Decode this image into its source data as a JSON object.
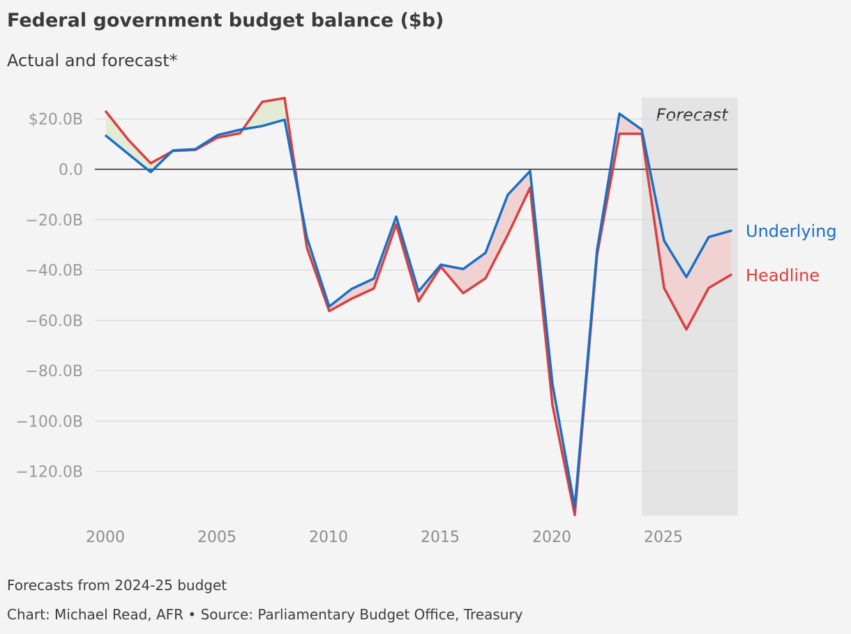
{
  "header": {
    "title": "Federal government budget balance ($b)",
    "subtitle": "Actual and forecast*"
  },
  "footer": {
    "footnote": "Forecasts from 2024-25 budget",
    "credit": "Chart: Michael Read, AFR • Source: Parliamentary Budget Office, Treasury"
  },
  "colors": {
    "underlying": "#1a6fc4",
    "headline": "#d9403f",
    "fill_headline_above": "#e3ead6",
    "fill_headline_below": "#f0d2d3",
    "forecast_band": "#e4e4e4",
    "gridline": "#dcdcdc",
    "zero_line": "#222222"
  },
  "chart_data": {
    "type": "line",
    "x": [
      2000.5,
      2001.5,
      2002.5,
      2003.5,
      2004.5,
      2005.5,
      2006.5,
      2007.5,
      2008.5,
      2009.5,
      2010.5,
      2011.5,
      2012.5,
      2013.5,
      2014.5,
      2015.5,
      2016.5,
      2017.5,
      2018.5,
      2019.5,
      2020.5,
      2021.5,
      2022.5,
      2023.5,
      2024.5,
      2025.5,
      2026.5,
      2027.5,
      2028.5
    ],
    "series": [
      {
        "name": "Underlying",
        "key": "underlying",
        "values": [
          13.3,
          6.1,
          -1.1,
          7.5,
          8.0,
          13.6,
          15.7,
          17.2,
          19.7,
          -27.1,
          -54.5,
          -47.5,
          -43.4,
          -18.8,
          -48.5,
          -37.9,
          -39.6,
          -33.2,
          -10.1,
          -0.7,
          -85.3,
          -134.2,
          -32.0,
          22.1,
          15.8,
          -28.3,
          -42.8,
          -26.9,
          -24.4
        ]
      },
      {
        "name": "Headline",
        "key": "headline",
        "values": [
          22.9,
          11.7,
          2.4,
          7.3,
          7.7,
          12.6,
          14.3,
          26.8,
          28.3,
          -31.2,
          -56.3,
          -51.4,
          -47.3,
          -21.9,
          -52.4,
          -38.7,
          -49.2,
          -43.3,
          -26.0,
          -7.3,
          -93.6,
          -137.3,
          -33.9,
          14.1,
          14.1,
          -47.1,
          -63.6,
          -47.1,
          -41.9
        ]
      }
    ],
    "xlim": [
      2000,
      2028.5
    ],
    "ylim": [
      -137.5,
      28.5
    ],
    "yticks": [
      20,
      0,
      -20,
      -40,
      -60,
      -80,
      -100,
      -120
    ],
    "ytick_labels": [
      "$20.0B",
      "0.0",
      "−20.0B",
      "−40.0B",
      "−60.0B",
      "−80.0B",
      "−100.0B",
      "−120.0B"
    ],
    "xticks": [
      2000,
      2005,
      2010,
      2015,
      2020,
      2025
    ],
    "xtick_labels": [
      "2000",
      "2005",
      "2010",
      "2015",
      "2020",
      "2025"
    ],
    "forecast_region": {
      "label": "Forecast",
      "x_start": 2024.5,
      "x_end": 2028.8
    },
    "grid": true,
    "legend": "direct labels at right end of lines"
  }
}
